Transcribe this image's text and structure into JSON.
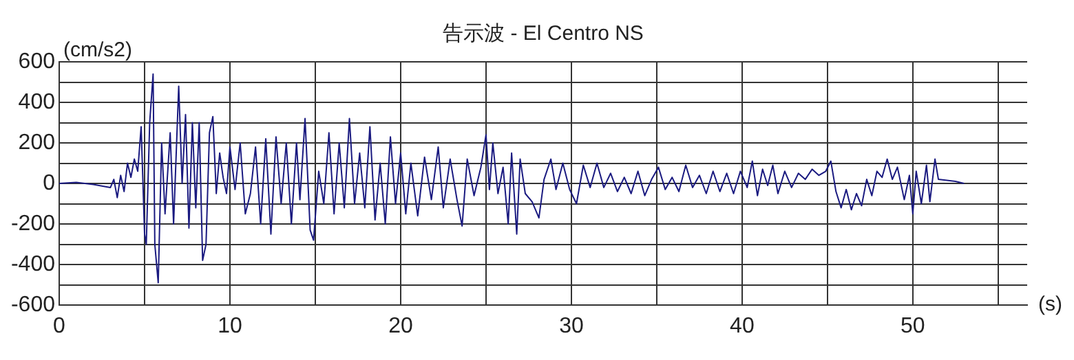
{
  "chart_data": {
    "type": "line",
    "title": "告示波 - El Centro NS",
    "xlabel": "(s)",
    "ylabel": "(cm/s2)",
    "xlim": [
      0,
      56.7
    ],
    "ylim": [
      -600,
      600
    ],
    "xticks": [
      0,
      {
        "value": 5,
        "label": null
      },
      10,
      {
        "value": 15,
        "label": null
      },
      20,
      {
        "value": 25,
        "label": null
      },
      30,
      {
        "value": 35,
        "label": null
      },
      40,
      {
        "value": 45,
        "label": null
      },
      50,
      {
        "value": 55,
        "label": null
      }
    ],
    "yticks": [
      -600,
      {
        "value": -500,
        "label": null
      },
      -400,
      {
        "value": -300,
        "label": null
      },
      -200,
      {
        "value": -100,
        "label": null
      },
      0,
      {
        "value": 100,
        "label": null
      },
      200,
      {
        "value": 300,
        "label": null
      },
      400,
      {
        "value": 500,
        "label": null
      },
      600
    ],
    "grid": true,
    "legend": false,
    "marker": "none",
    "line_style": "solid",
    "series": [
      {
        "color": "#1a1a80",
        "x": [
          0,
          1,
          2,
          3,
          3.2,
          3.4,
          3.6,
          3.8,
          4.0,
          4.2,
          4.4,
          4.6,
          4.8,
          5.0,
          5.1,
          5.3,
          5.5,
          5.6,
          5.8,
          6.0,
          6.2,
          6.5,
          6.7,
          7.0,
          7.2,
          7.4,
          7.6,
          7.8,
          8.0,
          8.2,
          8.4,
          8.6,
          8.8,
          9.0,
          9.2,
          9.4,
          9.6,
          9.8,
          10.0,
          10.3,
          10.6,
          10.9,
          11.2,
          11.5,
          11.8,
          12.1,
          12.4,
          12.7,
          13.0,
          13.3,
          13.6,
          13.9,
          14.1,
          14.4,
          14.7,
          14.9,
          15.2,
          15.5,
          15.8,
          16.1,
          16.4,
          16.7,
          17.0,
          17.3,
          17.6,
          17.9,
          18.2,
          18.5,
          18.8,
          19.1,
          19.4,
          19.7,
          20.0,
          20.3,
          20.6,
          21.0,
          21.4,
          21.8,
          22.2,
          22.5,
          22.9,
          23.3,
          23.6,
          23.9,
          24.3,
          24.7,
          25.0,
          25.2,
          25.4,
          25.7,
          26.0,
          26.3,
          26.5,
          26.8,
          27.0,
          27.3,
          27.7,
          28.1,
          28.4,
          28.8,
          29.1,
          29.5,
          29.9,
          30.3,
          30.7,
          31.1,
          31.5,
          31.9,
          32.3,
          32.7,
          33.1,
          33.5,
          33.9,
          34.3,
          34.7,
          35.1,
          35.5,
          35.9,
          36.3,
          36.7,
          37.1,
          37.5,
          37.9,
          38.3,
          38.7,
          39.1,
          39.5,
          39.9,
          40.3,
          40.6,
          40.9,
          41.2,
          41.5,
          41.8,
          42.1,
          42.5,
          42.9,
          43.3,
          43.7,
          44.1,
          44.5,
          44.9,
          45.2,
          45.5,
          45.8,
          46.1,
          46.4,
          46.7,
          47.0,
          47.3,
          47.6,
          47.9,
          48.2,
          48.5,
          48.8,
          49.1,
          49.5,
          49.8,
          50.0,
          50.2,
          50.5,
          50.8,
          51.0,
          51.3,
          51.5,
          52.5,
          53.0
        ],
        "values": [
          0,
          5,
          -5,
          -20,
          20,
          -70,
          40,
          -40,
          100,
          30,
          120,
          60,
          280,
          -250,
          -300,
          300,
          540,
          -300,
          -490,
          200,
          -150,
          250,
          -200,
          480,
          0,
          340,
          -220,
          300,
          -120,
          300,
          -380,
          -300,
          250,
          330,
          -50,
          150,
          30,
          -50,
          180,
          -30,
          200,
          -150,
          -50,
          180,
          -200,
          220,
          -250,
          230,
          -100,
          200,
          -200,
          200,
          -80,
          320,
          -230,
          -280,
          60,
          -100,
          250,
          -150,
          200,
          -120,
          320,
          -100,
          150,
          -120,
          280,
          -180,
          100,
          -200,
          230,
          -100,
          150,
          -150,
          100,
          -160,
          130,
          -80,
          180,
          -120,
          120,
          -80,
          -210,
          120,
          -60,
          80,
          240,
          -30,
          200,
          -50,
          80,
          -200,
          150,
          -250,
          120,
          -50,
          -90,
          -170,
          20,
          120,
          -30,
          100,
          -30,
          -100,
          90,
          -20,
          100,
          -20,
          50,
          -40,
          30,
          -50,
          60,
          -60,
          20,
          80,
          -30,
          30,
          -40,
          90,
          -20,
          40,
          -50,
          60,
          -40,
          50,
          -50,
          60,
          -20,
          110,
          -60,
          70,
          -10,
          90,
          -50,
          60,
          -20,
          50,
          20,
          70,
          40,
          60,
          110,
          -40,
          -120,
          -30,
          -130,
          -50,
          -110,
          20,
          -60,
          60,
          30,
          120,
          20,
          80,
          -80,
          40,
          -150,
          60,
          -100,
          90,
          -90,
          120,
          20,
          10,
          0
        ]
      }
    ]
  }
}
